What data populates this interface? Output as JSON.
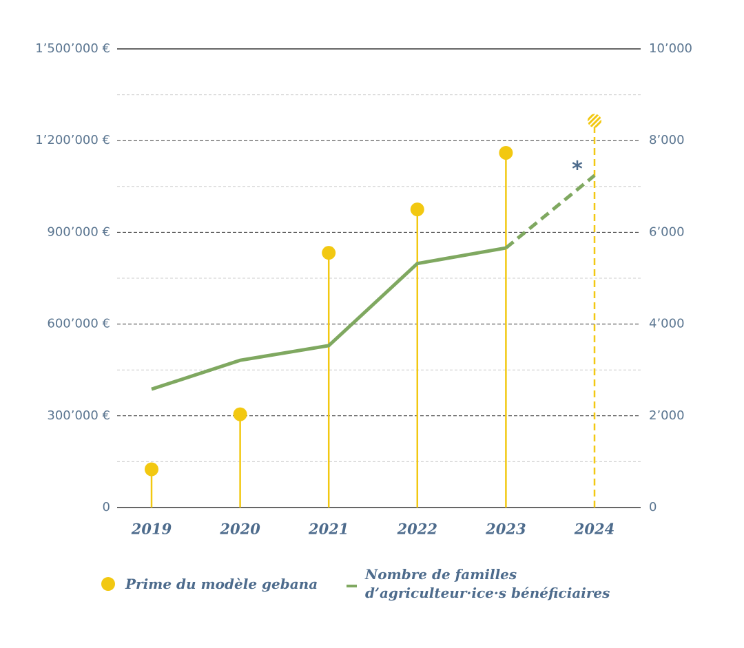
{
  "chart_data": {
    "type": "lollipop-line",
    "categories": [
      "2019",
      "2020",
      "2021",
      "2022",
      "2023",
      "2024"
    ],
    "estimated": [
      false,
      false,
      false,
      false,
      false,
      true
    ],
    "annotation": "*",
    "series": [
      {
        "name": "Prime du modèle gebana",
        "color": "#f2c811",
        "type": "lollipop",
        "axis": "y",
        "values": [
          125000,
          305000,
          833000,
          975000,
          1160000,
          1265000
        ]
      },
      {
        "name": "Nombre de familles d’agriculteur·ice·s bénéficiaires",
        "color": "#7fa860",
        "type": "line",
        "axis": "y2",
        "values": [
          2580,
          3210,
          3530,
          5320,
          5660,
          7240
        ]
      }
    ],
    "ylim": [
      0,
      1500000
    ],
    "yticks": [
      0,
      {
        "value": 300000,
        "label": "300’000 €"
      },
      {
        "value": 600000,
        "label": "600’000 €"
      },
      {
        "value": 900000,
        "label": "900’000 €"
      },
      {
        "value": 1200000,
        "label": "1’200’000 €"
      },
      {
        "value": 1500000,
        "label": "1’500’000 €"
      }
    ],
    "minor_yticks": [
      150000,
      450000,
      750000,
      1050000,
      1350000
    ],
    "y2lim": [
      0,
      10000
    ],
    "y2ticks": [
      0,
      {
        "value": 2000,
        "label": "2’000"
      },
      {
        "value": 4000,
        "label": "4’000"
      },
      {
        "value": 6000,
        "label": "6’000"
      },
      {
        "value": 8000,
        "label": "8’000"
      },
      {
        "value": 10000,
        "label": "10’000"
      }
    ],
    "grid": true
  }
}
